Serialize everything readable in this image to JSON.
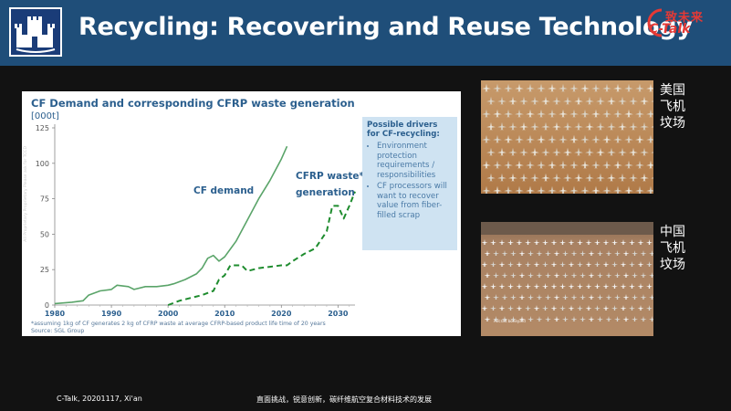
{
  "slide": {
    "title": "Recycling: Recovering and Reuse Technology",
    "brand_cn": "致未来",
    "brand_en": "C-Talk"
  },
  "colors": {
    "header_bg": "#1f4e79",
    "brand_red": "#e53935",
    "chart_green": "#5aa469",
    "chart_dark_green": "#1e8c2e",
    "chart_text": "#2b5f8e"
  },
  "chart": {
    "title": "CF Demand  and corresponding CFRP waste generation",
    "unit": "[000t]",
    "label_demand": "CF demand",
    "label_waste_line1": "CFRP waste*",
    "label_waste_line2": "generation",
    "note_line1": "*assuming 1kg of CF generates 2 kg of CFRP waste at average CFRP-based product life time of 20 years",
    "note_line2": "Source: SGL Group",
    "side_note": "All Proprietary Proprietary Please ask for TCCD",
    "drivers_title": "Possible drivers for CF-recycling:",
    "drivers": [
      "Environment protection requirements / responsibilities",
      "CF processors will want to recover value from fiber-filled scrap"
    ]
  },
  "chart_data": {
    "type": "line",
    "title": "CF Demand  and corresponding CFRP waste generation",
    "ylabel": "[000t]",
    "xlim": [
      1980,
      2033
    ],
    "ylim": [
      0,
      125
    ],
    "yticks": [
      0,
      25,
      50,
      75,
      100,
      125
    ],
    "xticks": [
      1980,
      1990,
      2000,
      2010,
      2020,
      2030
    ],
    "series": [
      {
        "name": "CF demand",
        "style": "solid",
        "x": [
          1980,
          1983,
          1985,
          1986,
          1988,
          1990,
          1991,
          1993,
          1994,
          1996,
          1998,
          2000,
          2001,
          2003,
          2005,
          2006,
          2007,
          2008,
          2009,
          2010,
          2012,
          2014,
          2016,
          2018,
          2020,
          2021
        ],
        "y": [
          1,
          2,
          3,
          7,
          10,
          11,
          14,
          13,
          11,
          13,
          13,
          14,
          15,
          18,
          22,
          26,
          33,
          35,
          31,
          34,
          45,
          60,
          75,
          88,
          103,
          112
        ]
      },
      {
        "name": "CFRP waste* generation",
        "style": "dashed",
        "x": [
          2000,
          2002,
          2004,
          2006,
          2008,
          2009,
          2010,
          2011,
          2012,
          2013,
          2014,
          2016,
          2018,
          2020,
          2021,
          2022,
          2024,
          2026,
          2028,
          2029,
          2030,
          2031,
          2032,
          2033
        ],
        "y": [
          0,
          3,
          5,
          7,
          10,
          18,
          21,
          28,
          28,
          28,
          24,
          26,
          27,
          28,
          28,
          31,
          36,
          40,
          52,
          70,
          70,
          61,
          70,
          80
        ]
      }
    ]
  },
  "photos": {
    "us_label": [
      "美国",
      "飞机",
      "坟场"
    ],
    "cn_label": [
      "中国",
      "飞机",
      "坟场"
    ],
    "cn_caption": "Aircraft boneyard"
  },
  "footer": {
    "left": "C-Talk, 20201117, Xi'an",
    "center": "直面挑战，锐意创新，碳纤维航空复合材料技术的发展"
  }
}
